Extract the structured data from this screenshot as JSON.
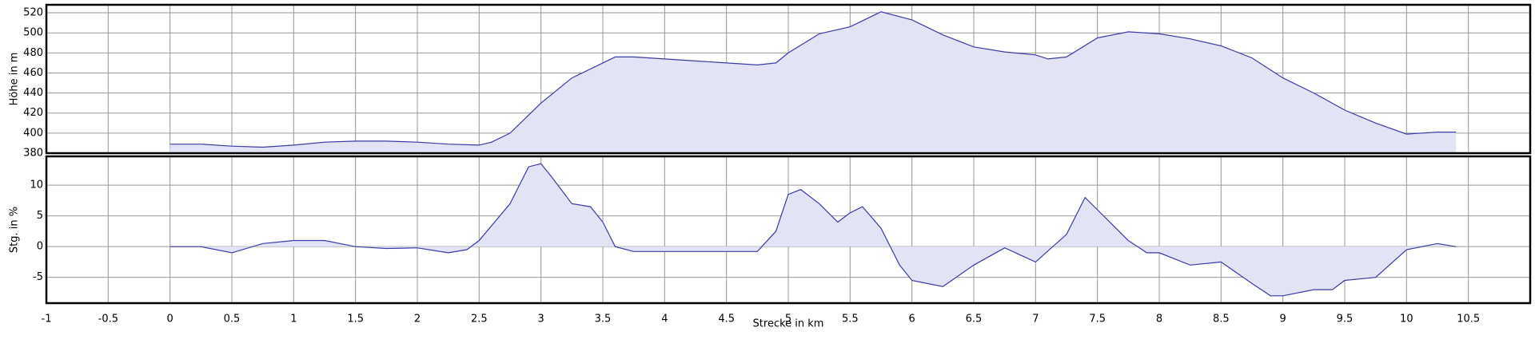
{
  "chart_data": [
    {
      "type": "area",
      "ylabel": "Höhe in m",
      "color": "#3a3aa8",
      "fill": "#e3e3f6",
      "grid": true,
      "xlim": [
        -1,
        11
      ],
      "xticks": [
        -1,
        -0.5,
        0,
        0.5,
        1,
        1.5,
        2,
        2.5,
        3,
        3.5,
        4,
        4.5,
        5,
        5.5,
        6,
        6.5,
        7,
        7.5,
        8,
        8.5,
        9,
        9.5,
        10,
        10.5
      ],
      "ylim": [
        380,
        528
      ],
      "yticks": [
        380,
        400,
        420,
        440,
        460,
        480,
        500,
        520
      ],
      "x": [
        0,
        0.25,
        0.5,
        0.75,
        1,
        1.25,
        1.5,
        1.75,
        2,
        2.25,
        2.5,
        2.6,
        2.75,
        3,
        3.25,
        3.5,
        3.6,
        3.75,
        4,
        4.25,
        4.5,
        4.75,
        4.9,
        5,
        5.25,
        5.5,
        5.75,
        6,
        6.25,
        6.5,
        6.75,
        7,
        7.1,
        7.25,
        7.5,
        7.75,
        8,
        8.25,
        8.5,
        8.75,
        9,
        9.25,
        9.5,
        9.75,
        10,
        10.25,
        10.4
      ],
      "values": [
        389,
        389,
        387,
        386,
        388,
        391,
        392,
        392,
        391,
        389,
        388,
        391,
        400,
        430,
        455,
        470,
        476,
        476,
        474,
        472,
        470,
        468,
        470,
        480,
        499,
        506,
        521,
        513,
        498,
        486,
        481,
        478,
        474,
        476,
        495,
        501,
        499,
        494,
        487,
        475,
        455,
        440,
        423,
        410,
        399,
        401,
        401
      ]
    },
    {
      "type": "area",
      "ylabel": "Stg. in %",
      "xlabel": "Strecke in km",
      "color": "#3a3aa8",
      "fill": "#e3e3f6",
      "grid": true,
      "xlim": [
        -1,
        11
      ],
      "xticks": [
        -1,
        -0.5,
        0,
        0.5,
        1,
        1.5,
        2,
        2.5,
        3,
        3.5,
        4,
        4.5,
        5,
        5.5,
        6,
        6.5,
        7,
        7.5,
        8,
        8.5,
        9,
        9.5,
        10,
        10.5
      ],
      "ylim": [
        -9.2,
        14.7
      ],
      "yticks": [
        -5,
        0,
        5,
        10
      ],
      "x": [
        0,
        0.25,
        0.5,
        0.75,
        1,
        1.25,
        1.5,
        1.75,
        2,
        2.25,
        2.4,
        2.5,
        2.75,
        2.9,
        3,
        3.1,
        3.25,
        3.4,
        3.5,
        3.6,
        3.75,
        4,
        4.5,
        4.75,
        4.9,
        5,
        5.1,
        5.25,
        5.4,
        5.5,
        5.6,
        5.75,
        5.9,
        6,
        6.25,
        6.5,
        6.75,
        7,
        7.25,
        7.4,
        7.5,
        7.75,
        7.9,
        8,
        8.25,
        8.5,
        8.75,
        8.9,
        9,
        9.25,
        9.4,
        9.5,
        9.75,
        10,
        10.25,
        10.4
      ],
      "values": [
        0,
        0,
        -1,
        0.5,
        1,
        1,
        0,
        -0.3,
        -0.2,
        -1,
        -0.5,
        1,
        7,
        13,
        13.5,
        11,
        7,
        6.5,
        4,
        0,
        -0.8,
        -0.8,
        -0.8,
        -0.8,
        2.5,
        8.5,
        9.3,
        7,
        4,
        5.5,
        6.5,
        3,
        -3,
        -5.5,
        -6.5,
        -3,
        -0.2,
        -2.5,
        2,
        8,
        6,
        1,
        -1,
        -1,
        -3,
        -2.5,
        -6,
        -8,
        -8,
        -7,
        -7,
        -5.5,
        -5,
        -0.5,
        0.5,
        0
      ]
    }
  ]
}
